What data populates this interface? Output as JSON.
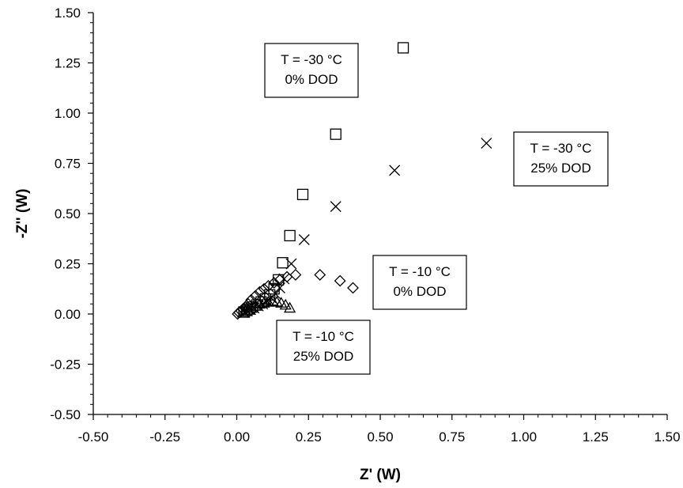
{
  "chart_data": {
    "type": "scatter",
    "title": "",
    "xlabel": "Z' (W)",
    "ylabel": "-Z'' (W)",
    "xlim": [
      -0.5,
      1.5
    ],
    "ylim": [
      -0.5,
      1.5
    ],
    "xticks": [
      "-0.50",
      "-0.25",
      "0.00",
      "0.25",
      "0.50",
      "0.75",
      "1.00",
      "1.25",
      "1.50"
    ],
    "yticks": [
      "-0.50",
      "-0.25",
      "0.00",
      "0.25",
      "0.50",
      "0.75",
      "1.00",
      "1.25",
      "1.50"
    ],
    "grid": false,
    "series": [
      {
        "marker": "square",
        "x": [
          0.58,
          0.345,
          0.23,
          0.185,
          0.16,
          0.145,
          0.13,
          0.115,
          0.1,
          0.085,
          0.07,
          0.055,
          0.045,
          0.035,
          0.025
        ],
        "y": [
          1.325,
          0.895,
          0.595,
          0.39,
          0.255,
          0.17,
          0.125,
          0.095,
          0.075,
          0.06,
          0.045,
          0.035,
          0.025,
          0.018,
          0.01
        ]
      },
      {
        "marker": "cross",
        "x": [
          0.87,
          0.55,
          0.345,
          0.235,
          0.19,
          0.165,
          0.15,
          0.135,
          0.12,
          0.105,
          0.09,
          0.075,
          0.06,
          0.048,
          0.037,
          0.028
        ],
        "y": [
          0.85,
          0.715,
          0.535,
          0.37,
          0.25,
          0.175,
          0.13,
          0.1,
          0.08,
          0.065,
          0.05,
          0.04,
          0.03,
          0.022,
          0.015,
          0.008
        ]
      },
      {
        "marker": "diamond",
        "x": [
          0.405,
          0.36,
          0.29,
          0.205,
          0.175,
          0.15,
          0.13,
          0.11,
          0.095,
          0.08,
          0.065,
          0.05,
          0.04,
          0.03,
          0.022,
          0.015,
          0.008,
          0.003
        ],
        "y": [
          0.13,
          0.165,
          0.195,
          0.195,
          0.185,
          0.17,
          0.155,
          0.14,
          0.125,
          0.11,
          0.09,
          0.07,
          0.05,
          0.035,
          0.025,
          0.015,
          0.008,
          0.0
        ]
      },
      {
        "marker": "triangle",
        "x": [
          0.185,
          0.17,
          0.155,
          0.14,
          0.125,
          0.11,
          0.095,
          0.08,
          0.065,
          0.05,
          0.04,
          0.03,
          0.022
        ],
        "y": [
          0.03,
          0.045,
          0.055,
          0.06,
          0.065,
          0.06,
          0.055,
          0.05,
          0.04,
          0.03,
          0.02,
          0.012,
          0.005
        ]
      }
    ],
    "annotations": [
      {
        "lines": [
          "T = -30 °C",
          "0% DOD"
        ]
      },
      {
        "lines": [
          "T = -30 °C",
          "25% DOD"
        ]
      },
      {
        "lines": [
          "T = -10 °C",
          "0% DOD"
        ]
      },
      {
        "lines": [
          "T = -10 °C",
          "25% DOD"
        ]
      }
    ]
  }
}
